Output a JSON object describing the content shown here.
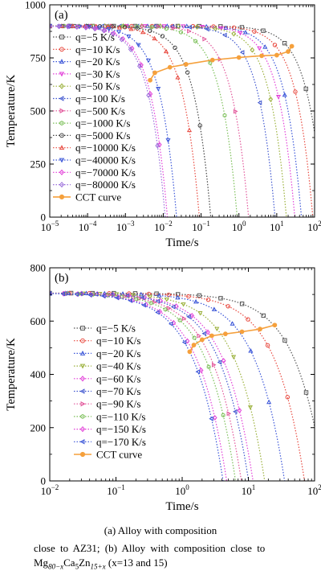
{
  "chart_data": [
    {
      "type": "line",
      "panel_label": "(a)",
      "xlabel": "Time/s",
      "ylabel": "Temperature/K",
      "xscale": "log",
      "xlim": [
        1e-05,
        100
      ],
      "ylim": [
        0,
        1000
      ],
      "x_ticks": [
        {
          "v": 1e-05,
          "base": "10",
          "exp": "−5"
        },
        {
          "v": 0.0001,
          "base": "10",
          "exp": "−4"
        },
        {
          "v": 0.001,
          "base": "10",
          "exp": "−3"
        },
        {
          "v": 0.01,
          "base": "10",
          "exp": "−2"
        },
        {
          "v": 0.1,
          "base": "10",
          "exp": "−1"
        },
        {
          "v": 1,
          "base": "10",
          "exp": "0"
        },
        {
          "v": 10,
          "base": "10",
          "exp": "1"
        },
        {
          "v": 100,
          "base": "10",
          "exp": "2"
        }
      ],
      "y_ticks": [
        0,
        250,
        500,
        750,
        1000
      ],
      "start_temperature": 900,
      "legend_position": "upper-left",
      "series": [
        {
          "name": "q=−5 K/s",
          "q": 5,
          "color": "#555555",
          "marker": "square"
        },
        {
          "name": "q=−10 K/s",
          "q": 10,
          "color": "#e8493f",
          "marker": "circle"
        },
        {
          "name": "q=−20 K/s",
          "q": 20,
          "color": "#3a55d8",
          "marker": "triangle"
        },
        {
          "name": "q=−30 K/s",
          "q": 30,
          "color": "#e23ed8",
          "marker": "triangle-down"
        },
        {
          "name": "q=−50 K/s",
          "q": 50,
          "color": "#9ab03a",
          "marker": "diamond"
        },
        {
          "name": "q=−100 K/s",
          "q": 100,
          "color": "#3f56cf",
          "marker": "triangle-left"
        },
        {
          "name": "q=−500 K/s",
          "q": 500,
          "color": "#e2559a",
          "marker": "triangle-right"
        },
        {
          "name": "q=−1000 K/s",
          "q": 1000,
          "color": "#7bbf58",
          "marker": "hexagon"
        },
        {
          "name": "q=−5000 K/s",
          "q": 5000,
          "color": "#444444",
          "marker": "circle"
        },
        {
          "name": "q=−10000 K/s",
          "q": 10000,
          "color": "#e8493f",
          "marker": "triangle"
        },
        {
          "name": "q=−40000 K/s",
          "q": 40000,
          "color": "#3a55d8",
          "marker": "triangle-down"
        },
        {
          "name": "q=−70000 K/s",
          "q": 70000,
          "color": "#e23ed8",
          "marker": "diamond"
        },
        {
          "name": "q=−80000 K/s",
          "q": 80000,
          "color": "#9b6fdb",
          "marker": "diamond"
        },
        {
          "name": "CCT curve",
          "color": "#f5a03c",
          "marker": "circle",
          "x": [
            0.0045,
            0.006,
            0.015,
            0.04,
            0.2,
            1.0,
            4.0,
            10.0,
            20.0,
            25.0
          ],
          "y": [
            645,
            680,
            706,
            720,
            740,
            752,
            760,
            763,
            780,
            805
          ]
        }
      ]
    },
    {
      "type": "line",
      "panel_label": "(b)",
      "xlabel": "Time/s",
      "ylabel": "Temperature/K",
      "xscale": "log",
      "xlim": [
        0.01,
        100
      ],
      "ylim": [
        0,
        800
      ],
      "x_ticks": [
        {
          "v": 0.01,
          "base": "10",
          "exp": "−2"
        },
        {
          "v": 0.1,
          "base": "10",
          "exp": "−1"
        },
        {
          "v": 1,
          "base": "10",
          "exp": "0"
        },
        {
          "v": 10,
          "base": "10",
          "exp": "1"
        },
        {
          "v": 100,
          "base": "10",
          "exp": "2"
        }
      ],
      "y_ticks": [
        0,
        200,
        400,
        600,
        800
      ],
      "start_temperature": 705,
      "legend_position": "center-left",
      "series": [
        {
          "name": "q=−5 K/s",
          "q": 5,
          "color": "#555555",
          "marker": "square"
        },
        {
          "name": "q=−10 K/s",
          "q": 10,
          "color": "#e8493f",
          "marker": "circle"
        },
        {
          "name": "q=−20 K/s",
          "q": 20,
          "color": "#3a55d8",
          "marker": "triangle"
        },
        {
          "name": "q=−40 K/s",
          "q": 40,
          "color": "#9ab03a",
          "marker": "triangle-down"
        },
        {
          "name": "q=−60 K/s",
          "q": 60,
          "color": "#e23ed8",
          "marker": "diamond"
        },
        {
          "name": "q=−70 K/s",
          "q": 70,
          "color": "#3f56cf",
          "marker": "triangle-left"
        },
        {
          "name": "q=−90 K/s",
          "q": 90,
          "color": "#e2559a",
          "marker": "triangle-right"
        },
        {
          "name": "q=−110 K/s",
          "q": 110,
          "color": "#7bbf58",
          "marker": "hexagon"
        },
        {
          "name": "q=−150 K/s",
          "q": 150,
          "color": "#e23ed8",
          "marker": "diamond"
        },
        {
          "name": "q=−170 K/s",
          "q": 170,
          "color": "#3a55d8",
          "marker": "triangle-left"
        },
        {
          "name": "CCT curve",
          "color": "#f5a03c",
          "marker": "circle",
          "x": [
            1.3,
            1.5,
            2.0,
            2.8,
            4.5,
            8.0,
            15.0,
            25.0
          ],
          "y": [
            485,
            510,
            530,
            545,
            552,
            560,
            570,
            585
          ]
        }
      ]
    }
  ],
  "caption": {
    "main": "(a) Alloy with composition",
    "line2": "close to AZ31; (b) Alloy with composition close to",
    "line3": {
      "formula_base": "Mg",
      "formula_sub1": "80−x",
      "formula_mid1": "Ca",
      "formula_sub2": "5",
      "formula_mid2": "Zn",
      "formula_sub3": "15+x",
      "rest": " (x=13 and 15)"
    }
  }
}
